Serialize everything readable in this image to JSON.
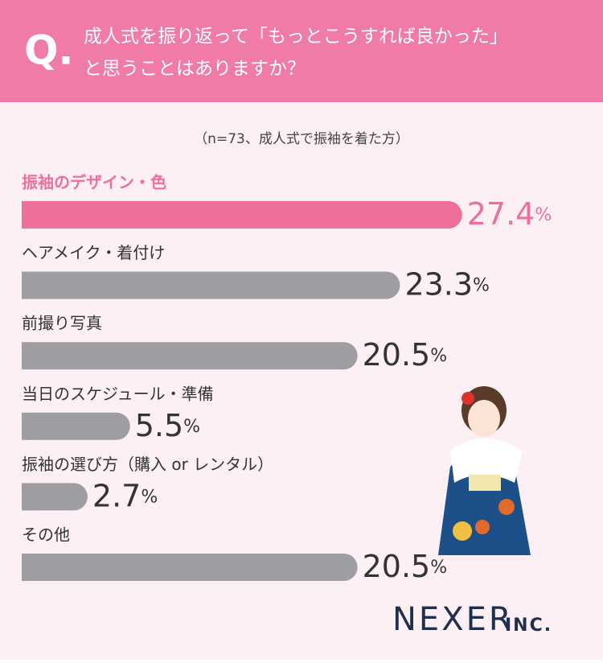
{
  "chart_data": {
    "type": "bar",
    "orientation": "horizontal",
    "q_mark": "Q.",
    "title_lines": [
      "成人式を振り返って「もっとこうすれば良かった」",
      "と思うことはありますか？"
    ],
    "subtitle": "（n=73、成人式で振袖を着た方）",
    "categories": [
      "振袖のデザイン・色",
      "ヘアメイク・着付け",
      "前撮り写真",
      "当日のスケジュール・準備",
      "振袖の選び方（購入 or レンタル）",
      "その他"
    ],
    "values": [
      27.4,
      23.3,
      20.5,
      5.5,
      2.7,
      20.5
    ],
    "unit": "%",
    "color": "#9e9ea2",
    "highlight_color": "#ee6f9c",
    "highlight_index": 0,
    "brand": "NEXER",
    "brand_suffix": "INC."
  }
}
